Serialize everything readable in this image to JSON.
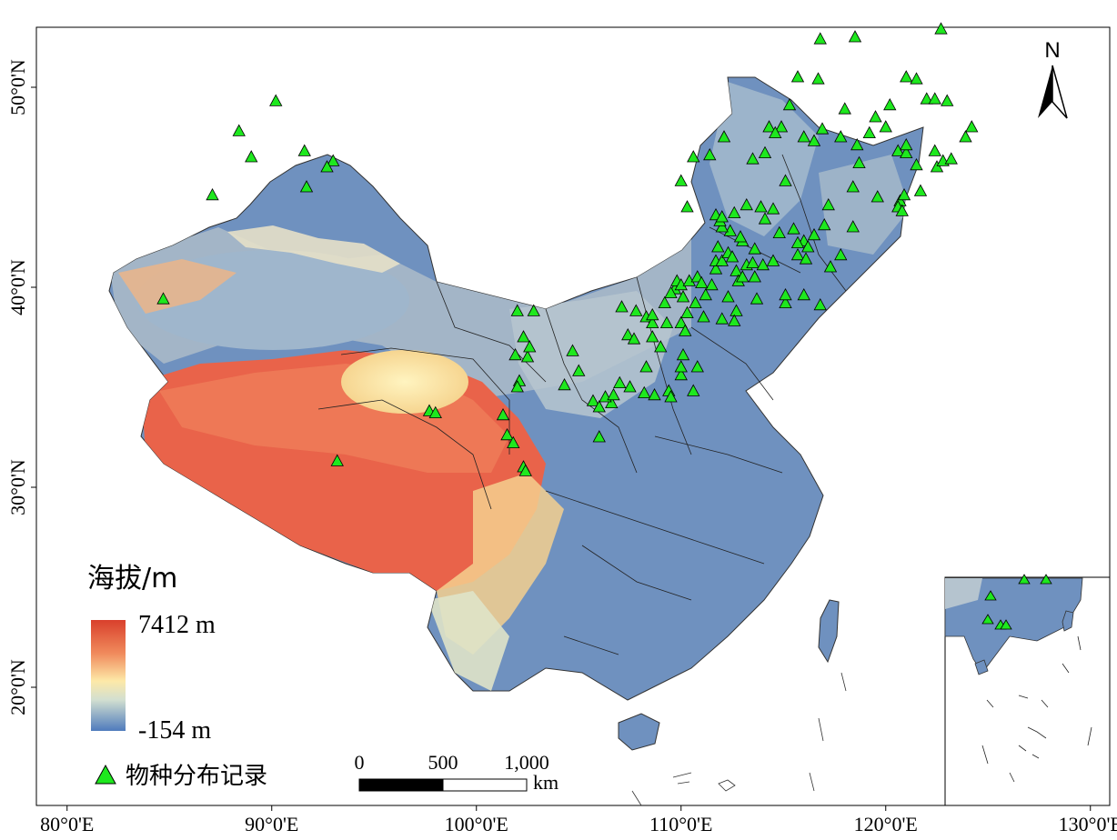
{
  "map": {
    "x_ticks": [
      "80°0'E",
      "90°0'E",
      "100°0'E",
      "110°0'E",
      "120°0'E",
      "130°0'E"
    ],
    "y_ticks": [
      "50°0'N",
      "40°0'N",
      "30°0'N",
      "20°0'N"
    ],
    "x_tick_values": [
      80,
      90,
      100,
      110,
      120,
      130
    ],
    "y_tick_values": [
      50,
      40,
      30,
      20
    ]
  },
  "legend": {
    "elevation_title": "海拔/m",
    "max_label": "7412 m",
    "min_label": "-154 m",
    "record_label": "物种分布记录",
    "ramp_colors": [
      "#d9402c",
      "#f08a5c",
      "#fde9a8",
      "#d2dfd0",
      "#4f7bbd"
    ]
  },
  "scale_bar": {
    "labels": [
      "0",
      "500",
      "1,000"
    ],
    "unit": "km"
  },
  "north_arrow": {
    "label": "N"
  },
  "colors": {
    "marker_fill": "#1ee81e",
    "high": "#d9402c",
    "mid": "#fde9a8",
    "low": "#6f91bf"
  },
  "chart_data": {
    "type": "scatter",
    "x_axis": "longitude",
    "y_axis": "latitude",
    "xlim": [
      78.5,
      135
    ],
    "ylim": [
      12,
      53
    ],
    "series": [
      {
        "name": "物种分布记录",
        "points": [
          [
            90.2,
            49.3
          ],
          [
            88.4,
            47.8
          ],
          [
            89.0,
            46.5
          ],
          [
            91.6,
            46.8
          ],
          [
            93.0,
            46.3
          ],
          [
            92.7,
            46.0
          ],
          [
            91.7,
            45.0
          ],
          [
            87.1,
            44.6
          ],
          [
            84.7,
            39.4
          ],
          [
            93.2,
            31.3
          ],
          [
            97.7,
            33.8
          ],
          [
            98.0,
            33.7
          ],
          [
            102.0,
            38.8
          ],
          [
            102.8,
            38.8
          ],
          [
            101.9,
            36.6
          ],
          [
            102.5,
            36.5
          ],
          [
            102.3,
            37.5
          ],
          [
            102.6,
            37.0
          ],
          [
            102.1,
            35.3
          ],
          [
            102.0,
            35.0
          ],
          [
            101.3,
            33.6
          ],
          [
            101.5,
            32.6
          ],
          [
            101.8,
            32.2
          ],
          [
            102.3,
            31.0
          ],
          [
            102.4,
            30.8
          ],
          [
            104.3,
            35.1
          ],
          [
            104.7,
            36.8
          ],
          [
            105.0,
            35.8
          ],
          [
            105.7,
            34.3
          ],
          [
            106.0,
            34.0
          ],
          [
            106.6,
            34.2
          ],
          [
            106.0,
            32.5
          ],
          [
            106.3,
            34.5
          ],
          [
            107.1,
            39.0
          ],
          [
            107.8,
            38.8
          ],
          [
            108.3,
            38.5
          ],
          [
            108.6,
            38.2
          ],
          [
            108.6,
            38.6
          ],
          [
            107.4,
            37.6
          ],
          [
            107.7,
            37.4
          ],
          [
            108.6,
            37.5
          ],
          [
            109.0,
            37.0
          ],
          [
            109.3,
            38.2
          ],
          [
            110.0,
            38.2
          ],
          [
            110.3,
            38.7
          ],
          [
            111.1,
            38.5
          ],
          [
            110.2,
            37.8
          ],
          [
            108.3,
            36.0
          ],
          [
            107.5,
            35.0
          ],
          [
            107.0,
            35.2
          ],
          [
            106.7,
            34.6
          ],
          [
            108.2,
            34.7
          ],
          [
            108.7,
            34.6
          ],
          [
            109.4,
            34.8
          ],
          [
            109.5,
            34.5
          ],
          [
            110.6,
            34.8
          ],
          [
            110.0,
            35.6
          ],
          [
            110.0,
            36.0
          ],
          [
            110.1,
            36.6
          ],
          [
            110.8,
            36.0
          ],
          [
            109.7,
            39.9
          ],
          [
            109.8,
            40.3
          ],
          [
            110.0,
            40.1
          ],
          [
            110.4,
            40.3
          ],
          [
            110.8,
            40.5
          ],
          [
            111.5,
            40.1
          ],
          [
            111.7,
            40.9
          ],
          [
            111.7,
            41.3
          ],
          [
            111.8,
            42.0
          ],
          [
            112.0,
            41.3
          ],
          [
            112.3,
            41.7
          ],
          [
            112.5,
            41.5
          ],
          [
            112.7,
            40.8
          ],
          [
            112.8,
            40.3
          ],
          [
            113.0,
            40.5
          ],
          [
            113.2,
            41.1
          ],
          [
            113.5,
            41.2
          ],
          [
            113.6,
            41.9
          ],
          [
            113.0,
            42.3
          ],
          [
            112.9,
            42.5
          ],
          [
            112.4,
            42.8
          ],
          [
            112.0,
            43.0
          ],
          [
            111.9,
            43.3
          ],
          [
            111.7,
            43.6
          ],
          [
            112.6,
            43.7
          ],
          [
            113.2,
            44.1
          ],
          [
            113.9,
            44.0
          ],
          [
            114.5,
            43.9
          ],
          [
            114.1,
            43.4
          ],
          [
            114.8,
            42.7
          ],
          [
            115.5,
            42.9
          ],
          [
            116.0,
            42.3
          ],
          [
            115.7,
            41.6
          ],
          [
            116.1,
            41.4
          ],
          [
            114.5,
            41.3
          ],
          [
            114.0,
            41.1
          ],
          [
            113.6,
            40.5
          ],
          [
            112.3,
            39.5
          ],
          [
            112.7,
            38.8
          ],
          [
            112.6,
            38.3
          ],
          [
            112.0,
            38.4
          ],
          [
            111.2,
            39.6
          ],
          [
            110.7,
            39.2
          ],
          [
            110.1,
            39.5
          ],
          [
            109.5,
            39.7
          ],
          [
            109.2,
            39.2
          ],
          [
            110.3,
            44.0
          ],
          [
            110.0,
            45.3
          ],
          [
            110.6,
            46.5
          ],
          [
            112.1,
            47.5
          ],
          [
            111.4,
            46.6
          ],
          [
            111.0,
            40.2
          ],
          [
            113.7,
            39.4
          ],
          [
            115.1,
            39.2
          ],
          [
            116.0,
            39.6
          ],
          [
            116.8,
            39.1
          ],
          [
            112.0,
            43.5
          ],
          [
            113.5,
            46.4
          ],
          [
            114.3,
            48.0
          ],
          [
            114.9,
            48.0
          ],
          [
            115.1,
            45.3
          ],
          [
            115.7,
            50.5
          ],
          [
            116.7,
            50.4
          ],
          [
            116.5,
            47.3
          ],
          [
            114.6,
            47.7
          ],
          [
            114.1,
            46.7
          ],
          [
            115.7,
            42.2
          ],
          [
            115.1,
            39.6
          ],
          [
            116.2,
            42.0
          ],
          [
            117.2,
            44.1
          ],
          [
            116.9,
            47.9
          ],
          [
            115.3,
            49.1
          ],
          [
            116.0,
            47.5
          ],
          [
            118.7,
            46.2
          ],
          [
            118.6,
            47.1
          ],
          [
            119.2,
            47.7
          ],
          [
            119.5,
            48.5
          ],
          [
            118.4,
            45.0
          ],
          [
            117.0,
            43.1
          ],
          [
            116.5,
            42.6
          ],
          [
            117.8,
            41.6
          ],
          [
            117.3,
            41.0
          ],
          [
            118.4,
            43.0
          ],
          [
            120.6,
            46.8
          ],
          [
            120.0,
            48.0
          ],
          [
            120.7,
            44.3
          ],
          [
            120.9,
            44.6
          ],
          [
            121.0,
            46.7
          ],
          [
            121.7,
            44.8
          ],
          [
            121.0,
            47.1
          ],
          [
            121.5,
            46.1
          ],
          [
            122.5,
            46.0
          ],
          [
            122.8,
            46.3
          ],
          [
            122.4,
            46.8
          ],
          [
            123.2,
            46.4
          ],
          [
            123.9,
            47.5
          ],
          [
            124.2,
            48.0
          ],
          [
            122.0,
            49.4
          ],
          [
            121.0,
            50.5
          ],
          [
            122.4,
            49.4
          ],
          [
            122.7,
            52.9
          ],
          [
            123.0,
            49.3
          ],
          [
            120.2,
            49.1
          ],
          [
            118.0,
            48.9
          ],
          [
            117.8,
            47.5
          ],
          [
            116.8,
            52.4
          ],
          [
            118.5,
            52.5
          ],
          [
            121.5,
            50.4
          ],
          [
            120.6,
            44.0
          ],
          [
            120.8,
            43.8
          ],
          [
            119.6,
            44.5
          ]
        ]
      }
    ]
  }
}
